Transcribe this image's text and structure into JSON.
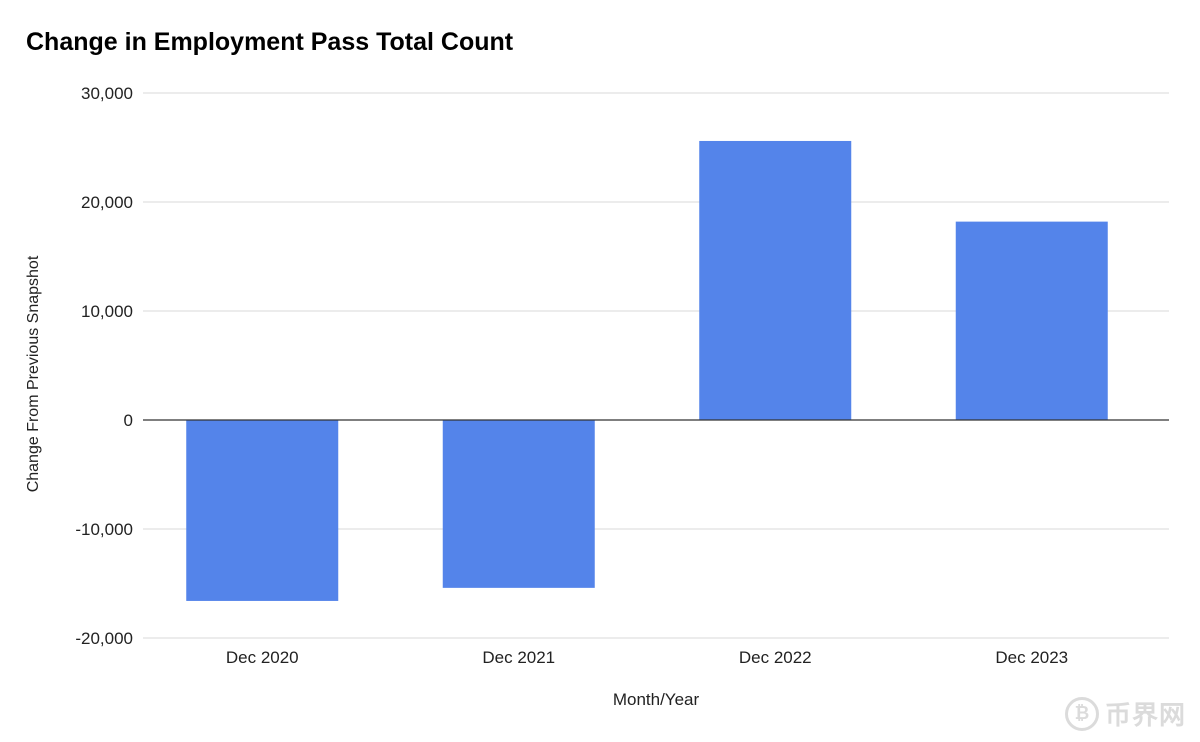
{
  "chart_data": {
    "type": "bar",
    "title": "Change in Employment Pass Total Count",
    "xlabel": "Month/Year",
    "ylabel": "Change From Previous Snapshot",
    "categories": [
      "Dec 2020",
      "Dec 2021",
      "Dec 2022",
      "Dec 2023"
    ],
    "values": [
      -16600,
      -15400,
      25600,
      18200
    ],
    "ylim": [
      -20000,
      30000
    ],
    "yticks": [
      30000,
      20000,
      10000,
      0,
      -10000,
      -20000
    ],
    "ytick_labels": [
      "30,000",
      "20,000",
      "10,000",
      "0",
      "-10,000",
      "-20,000"
    ],
    "grid": true,
    "legend": "none",
    "colors": {
      "bar": "#5484ea",
      "grid": "#d9d9d9",
      "zero_line": "#333333"
    }
  },
  "watermark": {
    "glyph": "₿",
    "text": "币界网"
  }
}
